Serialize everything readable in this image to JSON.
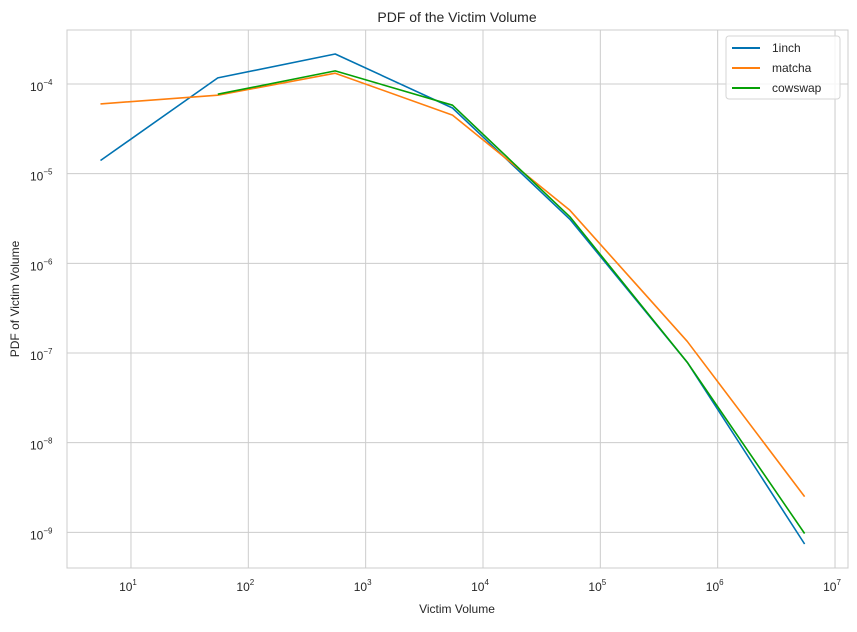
{
  "chart_data": {
    "type": "line",
    "title": "PDF of the Victim Volume",
    "xlabel": "Victim Volume",
    "ylabel": "PDF of Victim Volume",
    "xscale": "log",
    "yscale": "log",
    "xlim": [
      2.85,
      12900000
    ],
    "ylim": [
      4e-10,
      0.0004
    ],
    "grid": true,
    "legend_position": "top-right",
    "x_ticks": [
      {
        "exp": 1,
        "label_base": "10",
        "label_exp": "1"
      },
      {
        "exp": 2,
        "label_base": "10",
        "label_exp": "2"
      },
      {
        "exp": 3,
        "label_base": "10",
        "label_exp": "3"
      },
      {
        "exp": 4,
        "label_base": "10",
        "label_exp": "4"
      },
      {
        "exp": 5,
        "label_base": "10",
        "label_exp": "5"
      },
      {
        "exp": 6,
        "label_base": "10",
        "label_exp": "6"
      },
      {
        "exp": 7,
        "label_base": "10",
        "label_exp": "7"
      }
    ],
    "y_ticks": [
      {
        "exp": -4,
        "label_base": "10",
        "label_exp": "−4"
      },
      {
        "exp": -5,
        "label_base": "10",
        "label_exp": "−5"
      },
      {
        "exp": -6,
        "label_base": "10",
        "label_exp": "−6"
      },
      {
        "exp": -7,
        "label_base": "10",
        "label_exp": "−7"
      },
      {
        "exp": -8,
        "label_base": "10",
        "label_exp": "−8"
      },
      {
        "exp": -9,
        "label_base": "10",
        "label_exp": "−9"
      }
    ],
    "series": [
      {
        "name": "1inch",
        "color": "#0173b2",
        "x": [
          5.5,
          55,
          550,
          5500,
          55000,
          550000,
          5500000
        ],
        "y": [
          1.4e-05,
          0.000117,
          0.000216,
          5.4e-05,
          3.1e-06,
          7.9e-08,
          7.4e-10
        ]
      },
      {
        "name": "matcha",
        "color": "#ff7f0e",
        "x": [
          5.5,
          55,
          550,
          5500,
          55000,
          550000,
          5500000
        ],
        "y": [
          6e-05,
          7.5e-05,
          0.000132,
          4.5e-05,
          3.9e-06,
          1.35e-07,
          2.5e-09
        ]
      },
      {
        "name": "cowswap",
        "color": "#05a005",
        "x": [
          55,
          550,
          5500,
          55000,
          550000,
          5500000
        ],
        "y": [
          7.7e-05,
          0.00014,
          5.8e-05,
          3.3e-06,
          7.9e-08,
          9.7e-10
        ]
      }
    ]
  }
}
